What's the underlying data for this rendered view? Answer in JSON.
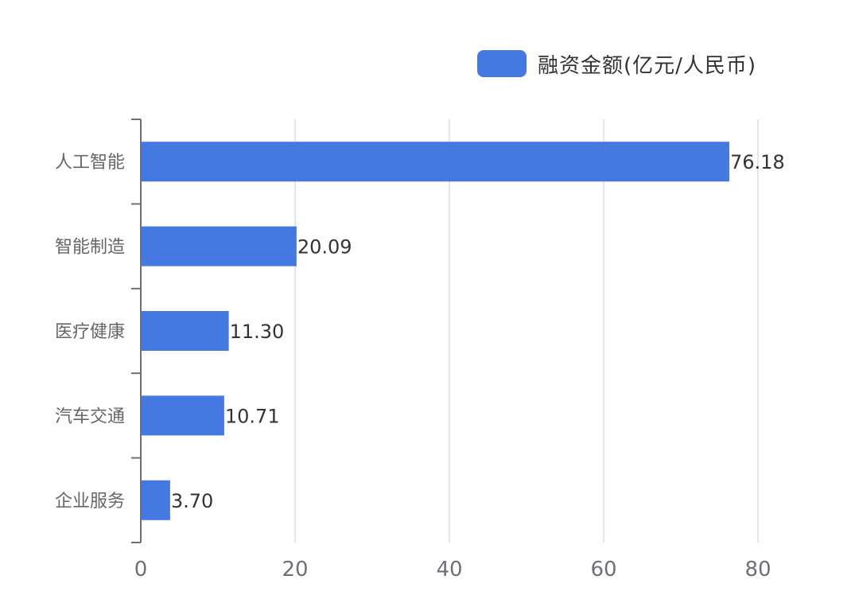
{
  "legend": {
    "label": "融资金额(亿元/人民币)",
    "color": "#4479e2"
  },
  "axis": {
    "x_ticks": [
      "0",
      "20",
      "40",
      "60",
      "80"
    ],
    "x_max": 80
  },
  "colors": {
    "bar": "#4479e2",
    "axis_line": "#6e7079",
    "grid": "#e0e6f1",
    "category_text": "#666666",
    "value_text": "#333333"
  },
  "chart_data": {
    "type": "bar",
    "orientation": "horizontal",
    "title": "",
    "xlabel": "",
    "ylabel": "",
    "categories": [
      "人工智能",
      "智能制造",
      "医疗健康",
      "汽车交通",
      "企业服务"
    ],
    "series": [
      {
        "name": "融资金额(亿元/人民币)",
        "values": [
          76.18,
          20.09,
          11.3,
          10.71,
          3.7
        ],
        "labels": [
          "76.18",
          "20.09",
          "11.30",
          "10.71",
          "3.70"
        ]
      }
    ],
    "xlim": [
      0,
      80
    ],
    "x_ticks": [
      0,
      20,
      40,
      60,
      80
    ],
    "grid": "vertical",
    "legend_position": "top-right",
    "data_labels": true
  }
}
